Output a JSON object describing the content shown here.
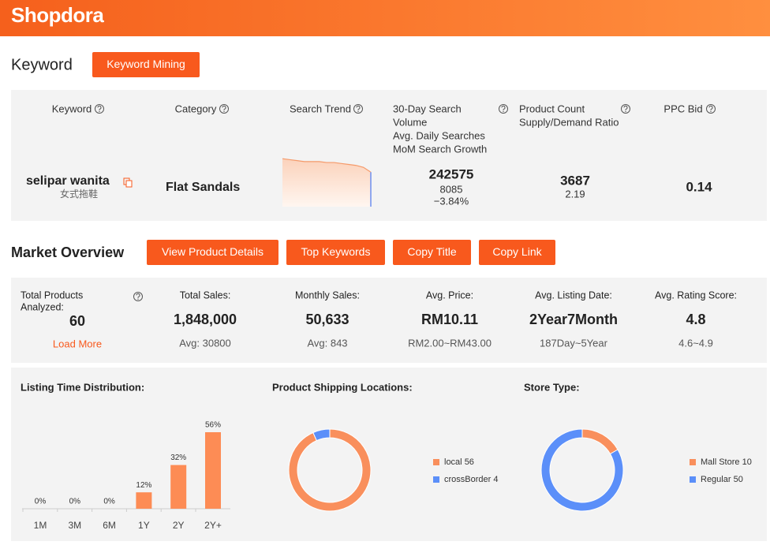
{
  "header": {
    "logo": "Shopdora"
  },
  "keyword": {
    "title": "Keyword",
    "button": "Keyword Mining",
    "columns": [
      [
        "Keyword"
      ],
      [
        "Category"
      ],
      [
        "Search Trend"
      ],
      [
        "30-Day Search",
        "Volume",
        "Avg. Daily Searches",
        "MoM Search Growth"
      ],
      [
        "Product Count",
        "Supply/Demand Ratio"
      ],
      [
        "PPC Bid"
      ]
    ],
    "row": {
      "keyword": "selipar wanita",
      "translation": "女式拖鞋",
      "category": "Flat Sandals",
      "search_trend": [
        50,
        49,
        48,
        47,
        47,
        47,
        46,
        46,
        45,
        44,
        43,
        41,
        36
      ],
      "search_volume": 242575,
      "daily_searches": 8085,
      "mom_growth": "−3.84%",
      "product_count": 3687,
      "supply_demand_ratio": 2.19,
      "ppc_bid": 0.14
    }
  },
  "market": {
    "title": "Market Overview",
    "buttons": [
      "View Product Details",
      "Top Keywords",
      "Copy Title",
      "Copy Link"
    ],
    "stats": [
      {
        "label": [
          "Total Products",
          "Analyzed:"
        ],
        "value": 60,
        "link": "Load More"
      },
      {
        "label": [
          "Total Sales:"
        ],
        "value": "1,848,000",
        "sub": "Avg: 30800"
      },
      {
        "label": [
          "Monthly Sales:"
        ],
        "value": "50,633",
        "sub": "Avg: 843"
      },
      {
        "label": [
          "Avg. Price:"
        ],
        "value": "RM10.11",
        "sub": "RM2.00~RM43.00"
      },
      {
        "label": [
          "Avg. Listing Date:"
        ],
        "value": "2Year7Month",
        "sub": "187Day~5Year"
      },
      {
        "label": [
          "Avg. Rating Score:"
        ],
        "value": 4.8,
        "sub": "4.6~4.9"
      }
    ]
  },
  "chart_data": [
    {
      "type": "bar",
      "title": "Listing Time Distribution:",
      "categories": [
        "1M",
        "3M",
        "6M",
        "1Y",
        "2Y",
        "2Y+"
      ],
      "values": [
        0,
        0,
        0,
        12,
        32,
        56
      ],
      "value_labels": [
        "0%",
        "0%",
        "0%",
        "12%",
        "32%",
        "56%"
      ],
      "color": "#fd8c55"
    },
    {
      "type": "donut",
      "title": "Product Shipping Locations:",
      "categories": [
        "local",
        "crossBorder"
      ],
      "values": [
        56,
        4
      ],
      "colors": [
        "#f98f5c",
        "#5b8ff9"
      ]
    },
    {
      "type": "donut",
      "title": "Store Type:",
      "categories": [
        "Mall Store",
        "Regular"
      ],
      "values": [
        10,
        50
      ],
      "colors": [
        "#f98f5c",
        "#5b8ff9"
      ]
    }
  ]
}
